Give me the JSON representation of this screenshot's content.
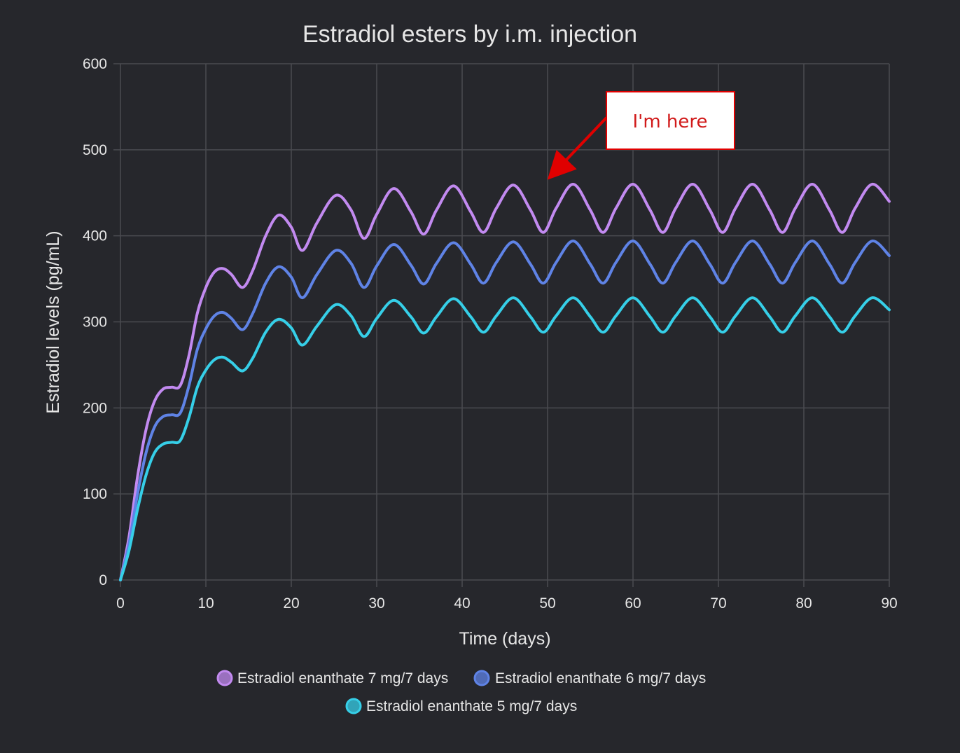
{
  "chart_data": {
    "type": "line",
    "title": "Estradiol esters by i.m. injection",
    "xlabel": "Time (days)",
    "ylabel": "Estradiol levels (pg/mL)",
    "xlim": [
      0,
      90
    ],
    "ylim": [
      0,
      600
    ],
    "x_ticks": [
      "0",
      "10",
      "20",
      "30",
      "40",
      "50",
      "60",
      "70",
      "80",
      "90"
    ],
    "y_ticks": [
      "0",
      "100",
      "200",
      "300",
      "400",
      "500",
      "600"
    ],
    "grid": true,
    "legend_position": "bottom",
    "series": [
      {
        "name": "Estradiol enanthate 7 mg/7 days",
        "color": "#c28af0",
        "x": [
          0,
          1,
          2,
          3,
          4,
          5,
          6,
          7,
          8,
          9,
          10,
          11,
          12,
          13,
          14.3,
          15.5,
          17,
          18.5,
          20,
          21.3,
          23,
          25.2,
          27,
          28.5,
          30,
          32,
          34,
          35.5,
          37,
          39,
          41,
          42.5,
          44,
          46,
          48,
          49.5,
          51,
          53,
          55,
          56.5,
          58,
          60,
          62,
          63.5,
          65,
          67,
          69,
          70.5,
          72,
          74,
          76,
          77.5,
          79,
          81,
          83,
          84.5,
          86,
          88,
          90
        ],
        "y": [
          0,
          50,
          120,
          175,
          208,
          222,
          224,
          226,
          260,
          310,
          340,
          358,
          362,
          355,
          340,
          360,
          400,
          424,
          410,
          383,
          415,
          447,
          430,
          397,
          425,
          455,
          428,
          402,
          430,
          458,
          428,
          404,
          432,
          459,
          430,
          404,
          432,
          460,
          430,
          404,
          432,
          460,
          430,
          404,
          432,
          460,
          430,
          404,
          432,
          460,
          430,
          404,
          432,
          460,
          430,
          404,
          432,
          460,
          440
        ]
      },
      {
        "name": "Estradiol enanthate 6 mg/7 days",
        "color": "#5f83e6",
        "x": [
          0,
          1,
          2,
          3,
          4,
          5,
          6,
          7,
          8,
          9,
          10,
          11,
          12,
          13,
          14.3,
          15.5,
          17,
          18.5,
          20,
          21.3,
          23,
          25.2,
          27,
          28.5,
          30,
          32,
          34,
          35.5,
          37,
          39,
          41,
          42.5,
          44,
          46,
          48,
          49.5,
          51,
          53,
          55,
          56.5,
          58,
          60,
          62,
          63.5,
          65,
          67,
          69,
          70.5,
          72,
          74,
          76,
          77.5,
          79,
          81,
          83,
          84.5,
          86,
          88,
          90
        ],
        "y": [
          0,
          42,
          100,
          148,
          178,
          190,
          192,
          194,
          225,
          268,
          292,
          307,
          311,
          304,
          291,
          310,
          345,
          364,
          352,
          328,
          355,
          383,
          368,
          340,
          365,
          390,
          366,
          344,
          368,
          392,
          367,
          345,
          369,
          393,
          367,
          345,
          369,
          394,
          367,
          345,
          369,
          394,
          367,
          345,
          369,
          394,
          367,
          345,
          369,
          394,
          367,
          345,
          369,
          394,
          367,
          345,
          369,
          394,
          377
        ]
      },
      {
        "name": "Estradiol enanthate 5 mg/7 days",
        "color": "#36cfe8",
        "x": [
          0,
          1,
          2,
          3,
          4,
          5,
          6,
          7,
          8,
          9,
          10,
          11,
          12,
          13,
          14.3,
          15.5,
          17,
          18.5,
          20,
          21.3,
          23,
          25.2,
          27,
          28.5,
          30,
          32,
          34,
          35.5,
          37,
          39,
          41,
          42.5,
          44,
          46,
          48,
          49.5,
          51,
          53,
          55,
          56.5,
          58,
          60,
          62,
          63.5,
          65,
          67,
          69,
          70.5,
          72,
          74,
          76,
          77.5,
          79,
          81,
          83,
          84.5,
          86,
          88,
          90
        ],
        "y": [
          0,
          34,
          82,
          122,
          148,
          158,
          160,
          162,
          188,
          224,
          244,
          256,
          259,
          253,
          243,
          258,
          288,
          303,
          293,
          273,
          295,
          320,
          307,
          283,
          304,
          325,
          306,
          287,
          306,
          327,
          306,
          288,
          307,
          328,
          306,
          288,
          307,
          328,
          306,
          288,
          307,
          328,
          306,
          288,
          307,
          328,
          306,
          288,
          307,
          328,
          306,
          288,
          307,
          328,
          306,
          288,
          307,
          328,
          314
        ]
      }
    ],
    "annotation": {
      "text": "I'm here",
      "points_to_x": 50,
      "points_to_y": 470,
      "color": "#e00000"
    }
  }
}
